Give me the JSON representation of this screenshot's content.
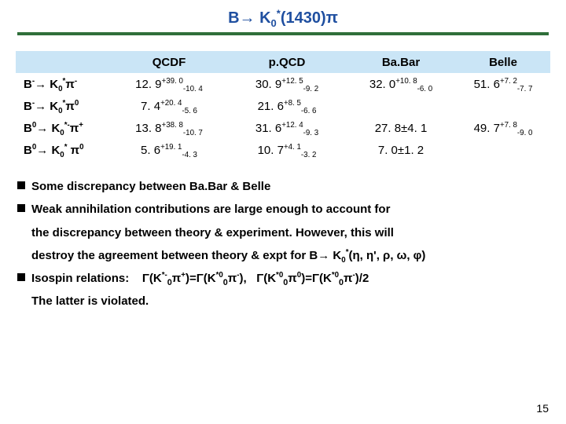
{
  "title_html": "B→ K<sub>0</sub><sup>*</sup>(1430)π",
  "title_color": "#1f4fa0",
  "rule_color": "#2f6f3a",
  "table": {
    "header_bg": "#cae5f6",
    "columns": [
      "",
      "QCDF",
      "p.QCD",
      "Ba.Bar",
      "Belle"
    ],
    "col_widths": [
      "120px",
      "150px",
      "150px",
      "140px",
      "120px"
    ],
    "rows": [
      {
        "label_html": "B<sup>-</sup>→ K<sub>0</sub><sup>*</sup>π<sup>-</sup>",
        "cells_html": [
          "12. 9<sup>+39. 0</sup><sub>-10. 4</sub>",
          "30. 9<sup>+12. 5</sup><sub>-9. 2</sub>",
          "32. 0<sup>+10. 8</sup><sub>-6. 0</sub>",
          "51. 6<sup>+7. 2</sup><sub>-7. 7</sub>"
        ]
      },
      {
        "label_html": "B<sup>-</sup>→ K<sub>0</sub><sup>*</sup>π<sup>0</sup>",
        "cells_html": [
          "7. 4<sup>+20. 4</sup><sub>-5. 6</sub>",
          "21. 6<sup>+8. 5</sup><sub>-6. 6</sub>",
          "",
          ""
        ]
      },
      {
        "label_html": "B<sup>0</sup>→ K<sub>0</sub><sup>*-</sup>π<sup>+</sup>",
        "cells_html": [
          "13. 8<sup>+38. 8</sup><sub>-10. 7</sub>",
          "31. 6<sup>+12. 4</sup><sub>-9. 3</sub>",
          "27. 8±4. 1",
          "49. 7<sup>+7. 8</sup><sub>-9. 0</sub>"
        ]
      },
      {
        "label_html": "B<sup>0</sup>→ K<sub>0</sub><sup>*</sup> π<sup>0</sup>",
        "cells_html": [
          "5. 6<sup>+19. 1</sup><sub>-4. 3</sub>",
          "10. 7<sup>+4. 1</sup><sub>-3. 2</sub>",
          "7. 0±1. 2",
          ""
        ]
      }
    ]
  },
  "notes": {
    "n1_html": "Some discrepancy between Ba.Bar & Belle",
    "n2a_html": "Weak annihilation contributions are large enough to account for",
    "n2b_html": "the discrepancy between theory & experiment. However, this will",
    "n2c_html": "destroy the agreement between theory & expt for B→ K<sub>0</sub><sup>*</sup>(η, η', ρ, ω, φ)",
    "n3a_html": "Isospin relations: &nbsp;&nbsp; Γ(K<sup>*-</sup><sub class='ss'>0</sub>π<sup>+</sup>)=Γ(K<sup>*0</sup><sub class='ss'>0</sub>π<sup>-</sup>), &nbsp; Γ(K<sup>*0</sup><sub class='ss'>0</sub>π<sup>0</sup>)=Γ(K<sup>*0</sup><sub class='ss'>0</sub>π<sup>-</sup>)/2",
    "n3b_html": "The latter is violated."
  },
  "page_number": "15"
}
